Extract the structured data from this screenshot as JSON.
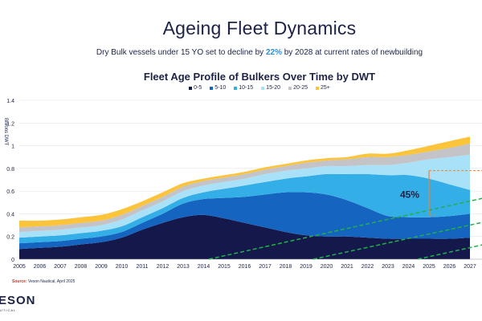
{
  "header": {
    "title": "Ageing Fleet Dynamics",
    "subtitle_before": "Dry Bulk vessels under 15 YO set to decline by ",
    "subtitle_highlight": "22%",
    "subtitle_after": " by 2028 at current rates of newbuilding"
  },
  "footer": {
    "source_label": "Source:",
    "source_text": " Veson Nautical, April 2025",
    "logo_text": "ESON",
    "logo_sub": "UTICAL"
  },
  "colors": {
    "0-5": "#15184a",
    "5-10": "#1565c0",
    "10-15": "#33aee6",
    "15-20": "#a9e2f8",
    "20-25": "#c3c3c8",
    "25+": "#fbc43a"
  },
  "chart_data": {
    "type": "area",
    "title": "Fleet Age Profile of Bulkers Over Time by DWT",
    "xlabel": "",
    "ylabel": "Billions DWT",
    "ylim": [
      0,
      1.4
    ],
    "yticks": [
      "0",
      "0.2",
      "0.4",
      "0.6",
      "0.8",
      "1",
      "1.2",
      "1.4"
    ],
    "grid": true,
    "legend_position": "top",
    "x": [
      "2005",
      "2006",
      "2007",
      "2008",
      "2009",
      "2010",
      "2011",
      "2012",
      "2013",
      "2014",
      "2015",
      "2016",
      "2017",
      "2018",
      "2019",
      "2020",
      "2021",
      "2022",
      "2023",
      "2024",
      "2025",
      "2026",
      "2027"
    ],
    "series": [
      {
        "name": "0-5",
        "values": [
          0.09,
          0.1,
          0.11,
          0.13,
          0.15,
          0.19,
          0.26,
          0.32,
          0.37,
          0.39,
          0.36,
          0.32,
          0.28,
          0.24,
          0.21,
          0.2,
          0.2,
          0.19,
          0.18,
          0.18,
          0.18,
          0.18,
          0.19
        ]
      },
      {
        "name": "5-10",
        "values": [
          0.05,
          0.05,
          0.05,
          0.05,
          0.05,
          0.05,
          0.06,
          0.08,
          0.12,
          0.14,
          0.18,
          0.23,
          0.29,
          0.35,
          0.38,
          0.37,
          0.32,
          0.26,
          0.2,
          0.19,
          0.19,
          0.2,
          0.21
        ]
      },
      {
        "name": "10-15",
        "values": [
          0.05,
          0.05,
          0.05,
          0.05,
          0.05,
          0.05,
          0.05,
          0.05,
          0.05,
          0.06,
          0.08,
          0.1,
          0.11,
          0.12,
          0.14,
          0.18,
          0.23,
          0.3,
          0.36,
          0.37,
          0.34,
          0.28,
          0.21
        ]
      },
      {
        "name": "15-20",
        "values": [
          0.05,
          0.05,
          0.05,
          0.05,
          0.05,
          0.06,
          0.06,
          0.06,
          0.06,
          0.06,
          0.06,
          0.06,
          0.07,
          0.07,
          0.07,
          0.07,
          0.07,
          0.08,
          0.09,
          0.11,
          0.17,
          0.24,
          0.31
        ]
      },
      {
        "name": "20-25",
        "values": [
          0.04,
          0.04,
          0.04,
          0.04,
          0.04,
          0.04,
          0.04,
          0.04,
          0.04,
          0.04,
          0.04,
          0.04,
          0.04,
          0.04,
          0.05,
          0.05,
          0.06,
          0.07,
          0.07,
          0.07,
          0.07,
          0.08,
          0.1
        ]
      },
      {
        "name": "25+",
        "values": [
          0.06,
          0.05,
          0.05,
          0.05,
          0.05,
          0.05,
          0.04,
          0.04,
          0.03,
          0.02,
          0.02,
          0.02,
          0.02,
          0.02,
          0.02,
          0.02,
          0.02,
          0.03,
          0.03,
          0.04,
          0.05,
          0.06,
          0.06
        ]
      }
    ],
    "annotations": [
      {
        "text": "45%",
        "type": "decline-bracket",
        "x_from": "2025",
        "x_to": "2027"
      }
    ]
  }
}
